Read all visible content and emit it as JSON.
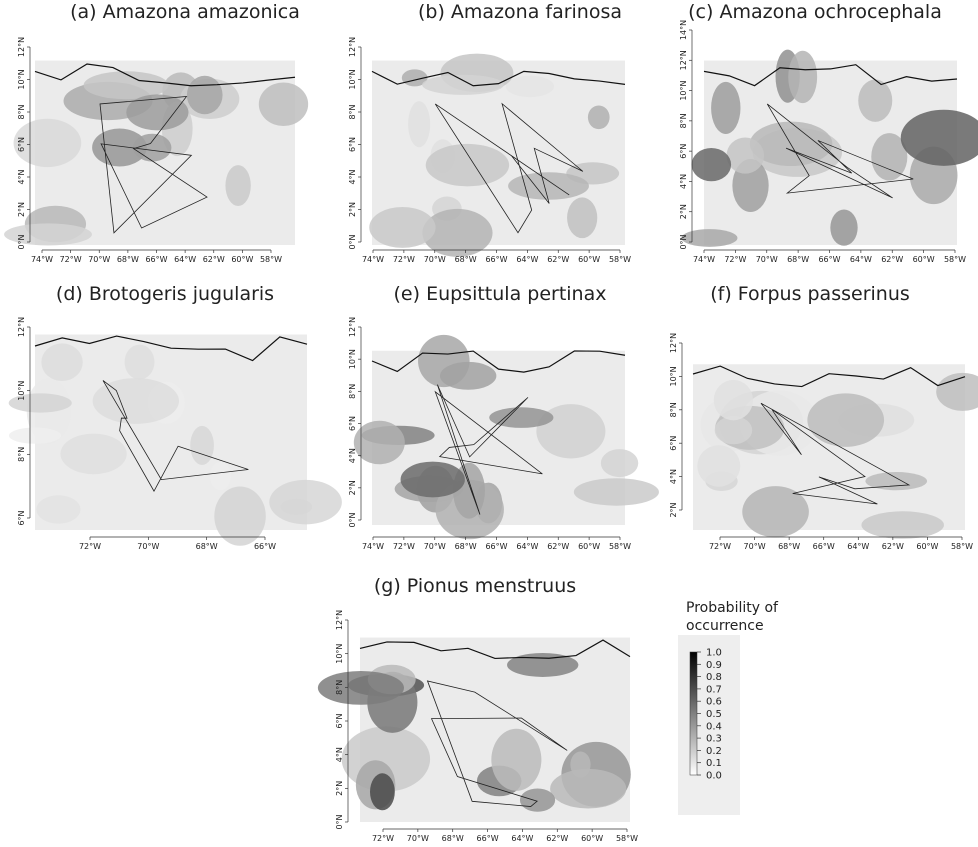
{
  "panels": [
    {
      "title": "(a) Amazona amazonica",
      "xticks": [
        "74°W",
        "72°W",
        "70°W",
        "68°W",
        "66°W",
        "64°W",
        "62°W",
        "60°W",
        "58°W"
      ],
      "yticks": [
        "0°N",
        "2°N",
        "4°N",
        "6°N",
        "8°N",
        "10°N",
        "12°N"
      ]
    },
    {
      "title": "(b) Amazona farinosa",
      "xticks": [
        "74°W",
        "72°W",
        "70°W",
        "68°W",
        "66°W",
        "64°W",
        "62°W",
        "60°W",
        "58°W"
      ],
      "yticks": [
        "0°N",
        "2°N",
        "4°N",
        "6°N",
        "8°N",
        "10°N",
        "12°N"
      ]
    },
    {
      "title": "(c) Amazona ochrocephala",
      "xticks": [
        "74°W",
        "72°W",
        "70°W",
        "68°W",
        "66°W",
        "64°W",
        "62°W",
        "60°W",
        "58°W"
      ],
      "yticks": [
        "0°N",
        "2°N",
        "4°N",
        "6°N",
        "8°N",
        "10°N",
        "12°N",
        "14°N"
      ]
    },
    {
      "title": "(d) Brotogeris jugularis",
      "xticks": [
        "72°W",
        "70°W",
        "68°W",
        "66°W"
      ],
      "yticks": [
        "6°N",
        "8°N",
        "10°N",
        "12°N"
      ]
    },
    {
      "title": "(e) Eupsittula pertinax",
      "xticks": [
        "74°W",
        "72°W",
        "70°W",
        "68°W",
        "66°W",
        "64°W",
        "62°W",
        "60°W",
        "58°W"
      ],
      "yticks": [
        "0°N",
        "2°N",
        "4°N",
        "6°N",
        "8°N",
        "10°N",
        "12°N"
      ]
    },
    {
      "title": "(f) Forpus passerinus",
      "xticks": [
        "72°W",
        "70°W",
        "68°W",
        "66°W",
        "64°W",
        "62°W",
        "60°W",
        "58°W"
      ],
      "yticks": [
        "2°N",
        "4°N",
        "6°N",
        "8°N",
        "10°N",
        "12°N"
      ]
    },
    {
      "title": "(g) Pionus menstruus",
      "xticks": [
        "72°W",
        "70°W",
        "68°W",
        "66°W",
        "64°W",
        "62°W",
        "60°W",
        "58°W"
      ],
      "yticks": [
        "0°N",
        "2°N",
        "4°N",
        "6°N",
        "8°N",
        "10°N",
        "12°N"
      ]
    }
  ],
  "legend": {
    "title_lines": [
      "Probability of",
      "occurrence"
    ],
    "ticks": [
      "1.0",
      "0.9",
      "0.8",
      "0.7",
      "0.6",
      "0.5",
      "0.4",
      "0.3",
      "0.2",
      "0.1",
      "0.0"
    ]
  }
}
